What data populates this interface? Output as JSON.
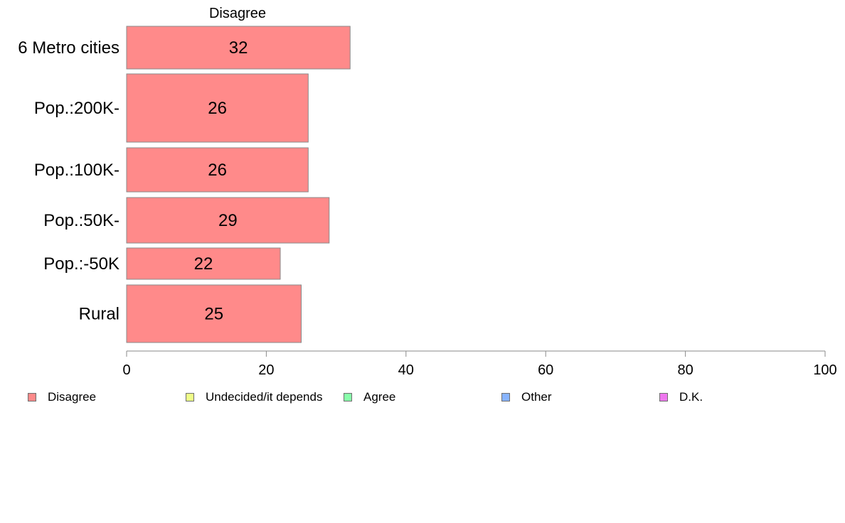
{
  "chart_data": {
    "type": "bar",
    "orientation": "horizontal",
    "stacked": true,
    "title": "Disagree",
    "categories": [
      "6 Metro cities",
      "Pop.:200K-",
      "Pop.:100K-",
      "Pop.:50K-",
      "Pop.:-50K",
      "Rural"
    ],
    "series": [
      {
        "name": "Disagree",
        "values": [
          32,
          26,
          26,
          29,
          22,
          25
        ],
        "color": "#ff8a8a"
      }
    ],
    "data_labels": [
      "32",
      "26",
      "26",
      "29",
      "22",
      "25"
    ],
    "xlim": [
      0,
      100
    ],
    "xticks": [
      0,
      20,
      40,
      60,
      80,
      100
    ],
    "grid": false,
    "legend_placement": "bottom",
    "legend": [
      {
        "label": "Disagree",
        "color": "#ff8a8a"
      },
      {
        "label": "Undecided/it depends",
        "color": "#eeff88"
      },
      {
        "label": "Agree",
        "color": "#88ffaa"
      },
      {
        "label": "Other",
        "color": "#88b4ff"
      },
      {
        "label": "D.K.",
        "color": "#ee77ee"
      }
    ]
  }
}
